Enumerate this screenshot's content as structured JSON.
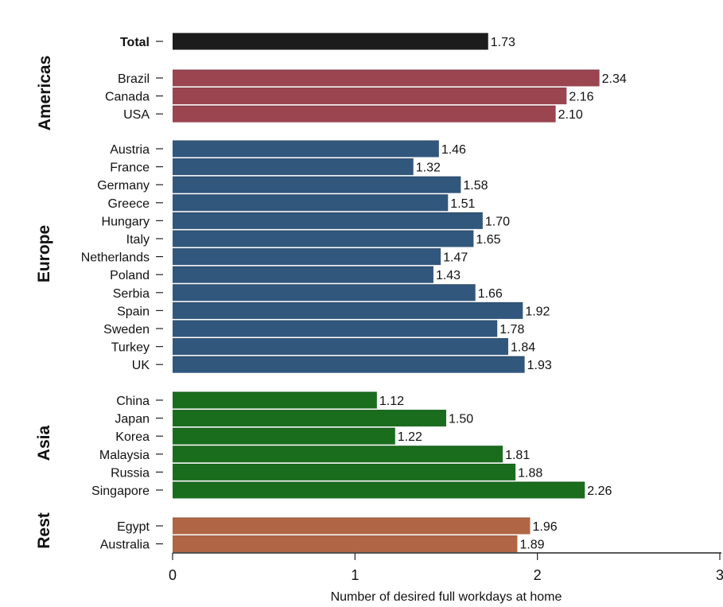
{
  "chart_data": {
    "type": "bar",
    "orientation": "horizontal",
    "xlabel": "Number of desired full workdays at home",
    "xlim": [
      0,
      3
    ],
    "xticks": [
      0,
      1,
      2,
      3
    ],
    "grid": false,
    "colors": {
      "Total": "#1c1c1c",
      "Americas": "#9a4550",
      "Europe": "#32577d",
      "Asia": "#1b6d1e",
      "Rest": "#b06645"
    },
    "groups": [
      {
        "name": "",
        "key": "Total",
        "bold": true,
        "items": [
          {
            "label": "Total",
            "value": 1.73,
            "value_label": "1.73"
          }
        ]
      },
      {
        "name": "Americas",
        "key": "Americas",
        "items": [
          {
            "label": "Brazil",
            "value": 2.34,
            "value_label": "2.34"
          },
          {
            "label": "Canada",
            "value": 2.16,
            "value_label": "2.16"
          },
          {
            "label": "USA",
            "value": 2.1,
            "value_label": "2.10"
          }
        ]
      },
      {
        "name": "Europe",
        "key": "Europe",
        "items": [
          {
            "label": "Austria",
            "value": 1.46,
            "value_label": "1.46"
          },
          {
            "label": "France",
            "value": 1.32,
            "value_label": "1.32"
          },
          {
            "label": "Germany",
            "value": 1.58,
            "value_label": "1.58"
          },
          {
            "label": "Greece",
            "value": 1.51,
            "value_label": "1.51"
          },
          {
            "label": "Hungary",
            "value": 1.7,
            "value_label": "1.70"
          },
          {
            "label": "Italy",
            "value": 1.65,
            "value_label": "1.65"
          },
          {
            "label": "Netherlands",
            "value": 1.47,
            "value_label": "1.47"
          },
          {
            "label": "Poland",
            "value": 1.43,
            "value_label": "1.43"
          },
          {
            "label": "Serbia",
            "value": 1.66,
            "value_label": "1.66"
          },
          {
            "label": "Spain",
            "value": 1.92,
            "value_label": "1.92"
          },
          {
            "label": "Sweden",
            "value": 1.78,
            "value_label": "1.78"
          },
          {
            "label": "Turkey",
            "value": 1.84,
            "value_label": "1.84"
          },
          {
            "label": "UK",
            "value": 1.93,
            "value_label": "1.93"
          }
        ]
      },
      {
        "name": "Asia",
        "key": "Asia",
        "items": [
          {
            "label": "China",
            "value": 1.12,
            "value_label": "1.12"
          },
          {
            "label": "Japan",
            "value": 1.5,
            "value_label": "1.50"
          },
          {
            "label": "Korea",
            "value": 1.22,
            "value_label": "1.22"
          },
          {
            "label": "Malaysia",
            "value": 1.81,
            "value_label": "1.81"
          },
          {
            "label": "Russia",
            "value": 1.88,
            "value_label": "1.88"
          },
          {
            "label": "Singapore",
            "value": 2.26,
            "value_label": "2.26"
          }
        ]
      },
      {
        "name": "Rest",
        "key": "Rest",
        "items": [
          {
            "label": "Egypt",
            "value": 1.96,
            "value_label": "1.96"
          },
          {
            "label": "Australia",
            "value": 1.89,
            "value_label": "1.89"
          }
        ]
      }
    ]
  }
}
